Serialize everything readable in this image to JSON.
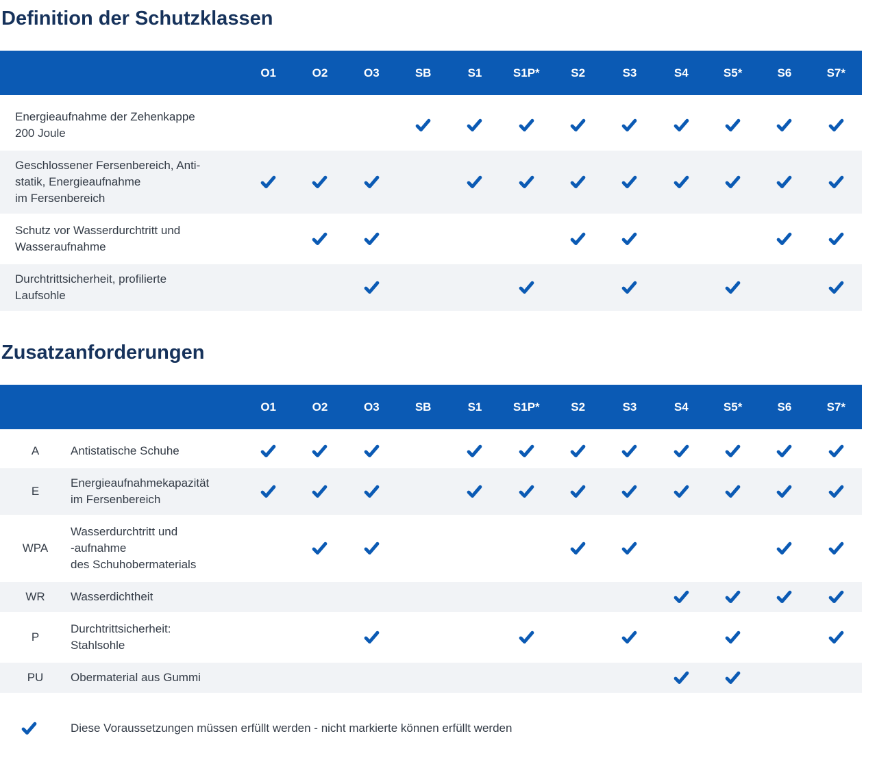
{
  "colors": {
    "header_bg": "#0b5ab4",
    "check": "#0b5ab4",
    "row_alt_bg": "#f1f3f6",
    "title_text": "#16325b",
    "body_text": "#333b46"
  },
  "columns": [
    "O1",
    "O2",
    "O3",
    "SB",
    "S1",
    "S1P*",
    "S2",
    "S3",
    "S4",
    "S5*",
    "S6",
    "S7*"
  ],
  "section1": {
    "title": "Definition der Schutzklassen",
    "rows": [
      {
        "label": "Energieaufnahme der Zehenkappe\n200 Joule",
        "checks": [
          0,
          0,
          0,
          1,
          1,
          1,
          1,
          1,
          1,
          1,
          1,
          1
        ]
      },
      {
        "label": "Geschlossener Fersenbereich, Anti-\nstatik, Energieaufnahme\nim Fersenbereich",
        "checks": [
          1,
          1,
          1,
          0,
          1,
          1,
          1,
          1,
          1,
          1,
          1,
          1
        ]
      },
      {
        "label": "Schutz vor Wasserdurchtritt und\nWasseraufnahme",
        "checks": [
          0,
          1,
          1,
          0,
          0,
          0,
          1,
          1,
          0,
          0,
          1,
          1
        ]
      },
      {
        "label": "Durchtrittsicherheit, profilierte\nLaufsohle",
        "checks": [
          0,
          0,
          1,
          0,
          0,
          1,
          0,
          1,
          0,
          1,
          0,
          1
        ]
      }
    ]
  },
  "section2": {
    "title": "Zusatzanforderungen",
    "rows": [
      {
        "code": "A",
        "label": "Antistatische Schuhe",
        "checks": [
          1,
          1,
          1,
          0,
          1,
          1,
          1,
          1,
          1,
          1,
          1,
          1
        ]
      },
      {
        "code": "E",
        "label": "Energieaufnahmekapazität\nim Fersenbereich",
        "checks": [
          1,
          1,
          1,
          0,
          1,
          1,
          1,
          1,
          1,
          1,
          1,
          1
        ]
      },
      {
        "code": "WPA",
        "label": "Wasserdurchtritt und\n-aufnahme\ndes Schuhobermaterials",
        "checks": [
          0,
          1,
          1,
          0,
          0,
          0,
          1,
          1,
          0,
          0,
          1,
          1
        ]
      },
      {
        "code": "WR",
        "label": "Wasserdichtheit",
        "checks": [
          0,
          0,
          0,
          0,
          0,
          0,
          0,
          0,
          1,
          1,
          1,
          1
        ]
      },
      {
        "code": "P",
        "label": "Durchtrittsicherheit:\nStahlsohle",
        "checks": [
          0,
          0,
          1,
          0,
          0,
          1,
          0,
          1,
          0,
          1,
          0,
          1
        ]
      },
      {
        "code": "PU",
        "label": "Obermaterial aus Gummi",
        "checks": [
          0,
          0,
          0,
          0,
          0,
          0,
          0,
          0,
          1,
          1,
          0,
          0
        ]
      }
    ]
  },
  "legend": {
    "icon": "check-icon",
    "text": "Diese Voraussetzungen müssen erfüllt werden - nicht markierte können erfüllt werden"
  }
}
